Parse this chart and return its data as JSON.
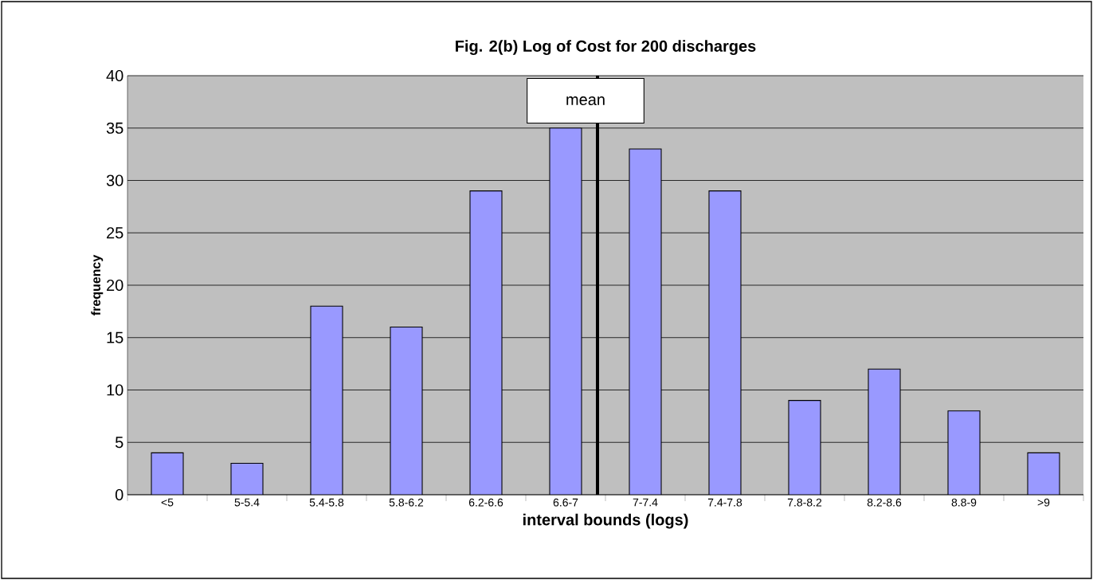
{
  "chart_data": {
    "type": "bar",
    "title": "Fig. 2(b) Log of Cost for 200 discharges",
    "xlabel": "interval bounds (logs)",
    "ylabel": "frequency",
    "categories": [
      "<5",
      "5-5.4",
      "5.4-5.8",
      "5.8-6.2",
      "6.2-6.6",
      "6.6-7",
      "7-7.4",
      "7.4-7.8",
      "7.8-8.2",
      "8.2-8.6",
      "8.8-9",
      ">9"
    ],
    "values": [
      4,
      3,
      18,
      16,
      29,
      35,
      33,
      29,
      9,
      12,
      8,
      4
    ],
    "color": "#9999ff",
    "ylim": [
      0,
      40
    ],
    "yticks": [
      0,
      5,
      10,
      15,
      20,
      25,
      30,
      35,
      40
    ],
    "grid": "y",
    "ref_lines": [
      {
        "axis": "x",
        "value": "6.6-7",
        "label": "mean",
        "color": "#000000"
      }
    ]
  }
}
